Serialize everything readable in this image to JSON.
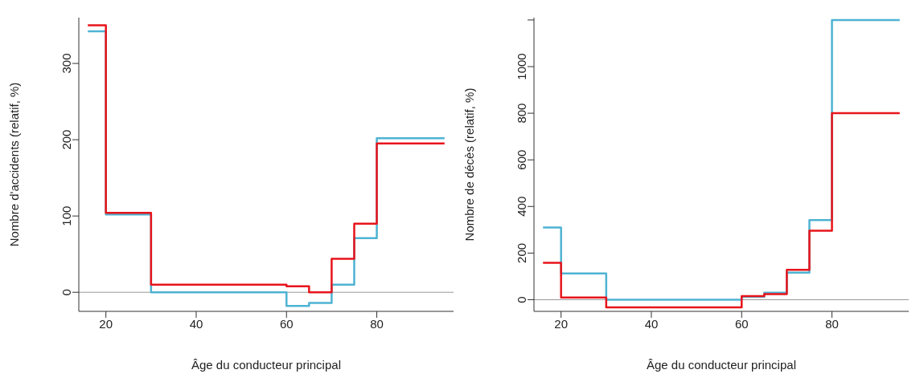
{
  "chart_data": [
    {
      "type": "step",
      "xlabel": "Âge du conducteur principal",
      "ylabel": "Nombre d'accidents (relatif, %)",
      "xlim": [
        14,
        97
      ],
      "xticks": [
        20,
        40,
        60,
        80
      ],
      "ylim": [
        -25,
        360
      ],
      "yticks": [
        0,
        100,
        200,
        300
      ],
      "grid": false,
      "legend": false,
      "marker": "none",
      "line_style": "solid",
      "ref_lines": [
        {
          "axis": "y",
          "value": 0,
          "color": "#999999"
        }
      ],
      "series": [
        {
          "color": "#4eb3d3",
          "x": [
            16,
            20,
            30,
            60,
            65,
            70,
            75,
            80,
            95
          ],
          "values": [
            342,
            102,
            0,
            -18,
            -14,
            10,
            71,
            202,
            202
          ]
        },
        {
          "color": "#e8141b",
          "x": [
            16,
            20,
            30,
            60,
            65,
            70,
            75,
            80,
            95
          ],
          "values": [
            350,
            104,
            10,
            8,
            0,
            44,
            90,
            195,
            195
          ]
        }
      ]
    },
    {
      "type": "step",
      "xlabel": "Âge du conducteur principal",
      "ylabel": "Nombre de décès (relatif, %)",
      "xlim": [
        14,
        97
      ],
      "xticks": [
        20,
        40,
        60,
        80
      ],
      "ylim": [
        -50,
        1210
      ],
      "yticks": [
        0,
        200,
        400,
        600,
        800,
        1000,
        {
          "value": 1200,
          "label": null
        }
      ],
      "grid": false,
      "legend": false,
      "marker": "none",
      "line_style": "solid",
      "ref_lines": [
        {
          "axis": "y",
          "value": 0,
          "color": "#999999"
        }
      ],
      "series": [
        {
          "color": "#4eb3d3",
          "x": [
            16,
            20,
            30,
            60,
            65,
            70,
            75,
            80,
            95
          ],
          "values": [
            310,
            113,
            0,
            13,
            30,
            116,
            342,
            1200,
            1200
          ]
        },
        {
          "color": "#e8141b",
          "x": [
            16,
            20,
            30,
            60,
            65,
            70,
            75,
            80,
            95
          ],
          "values": [
            158,
            9,
            -33,
            15,
            24,
            128,
            296,
            800,
            800
          ]
        }
      ]
    }
  ]
}
